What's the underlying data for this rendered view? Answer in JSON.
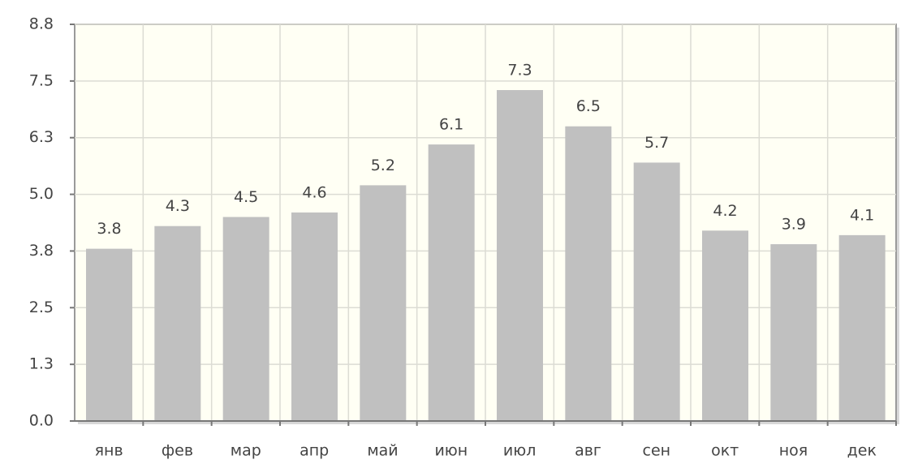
{
  "chart_data": {
    "type": "bar",
    "categories": [
      "янв",
      "фев",
      "мар",
      "апр",
      "май",
      "июн",
      "июл",
      "авг",
      "сен",
      "окт",
      "ноя",
      "дек"
    ],
    "values": [
      3.8,
      4.3,
      4.5,
      4.6,
      5.2,
      6.1,
      7.3,
      6.5,
      5.7,
      4.2,
      3.9,
      4.1
    ],
    "color": "#c0c0c0",
    "ylim": [
      0,
      8.75
    ],
    "yticks": [
      {
        "value": 0,
        "label": "0.0"
      },
      {
        "value": 1.25,
        "label": "1.3"
      },
      2.5,
      {
        "value": 3.75,
        "label": "3.8"
      },
      {
        "value": 5,
        "label": "5.0"
      },
      {
        "value": 6.25,
        "label": "6.3"
      },
      7.5,
      {
        "value": 8.75,
        "label": "8.8"
      }
    ],
    "grid": true
  }
}
